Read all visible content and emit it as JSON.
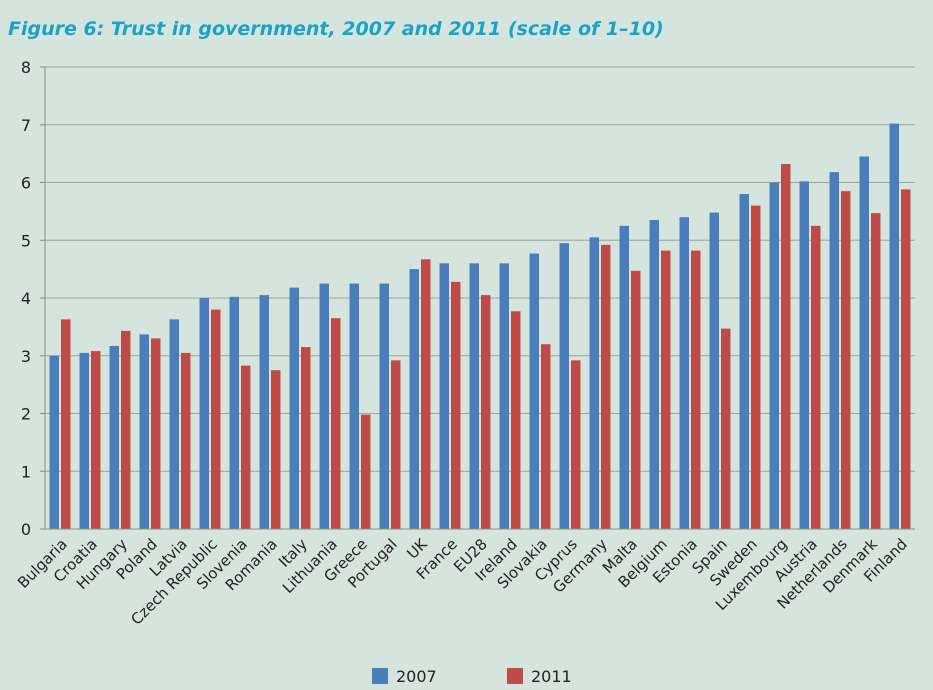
{
  "title": "Figure 6: Trust in government, 2007 and 2011 (scale of 1–10)",
  "colors": {
    "s2007": "#4a7ebb",
    "s2011": "#be4b48",
    "axis": "#8a8a8a",
    "grid": "#9aa39e"
  },
  "chart_data": {
    "type": "bar",
    "title": "Figure 6: Trust in government, 2007 and 2011 (scale of 1–10)",
    "xlabel": "",
    "ylabel": "",
    "ylim": [
      0,
      8
    ],
    "yticks": [
      "0",
      "1",
      "2",
      "3",
      "4",
      "5",
      "6",
      "7",
      "8"
    ],
    "grid": true,
    "legend": "bottom",
    "categories": [
      "Bulgaria",
      "Croatia",
      "Hungary",
      "Poland",
      "Latvia",
      "Czech Republic",
      "Slovenia",
      "Romania",
      "Italy",
      "Lithuania",
      "Greece",
      "Portugal",
      "UK",
      "France",
      "EU28",
      "Ireland",
      "Slovakia",
      "Cyprus",
      "Germany",
      "Malta",
      "Belgium",
      "Estonia",
      "Spain",
      "Sweden",
      "Luxembourg",
      "Austria",
      "Netherlands",
      "Denmark",
      "Finland"
    ],
    "series": [
      {
        "name": "2007",
        "values": [
          3.0,
          3.05,
          3.17,
          3.37,
          3.63,
          4.0,
          4.02,
          4.05,
          4.18,
          4.25,
          4.25,
          4.25,
          4.5,
          4.6,
          4.6,
          4.6,
          4.77,
          4.95,
          5.05,
          5.25,
          5.35,
          5.4,
          5.48,
          5.8,
          6.0,
          6.02,
          6.18,
          6.45,
          7.02
        ]
      },
      {
        "name": "2011",
        "values": [
          3.63,
          3.08,
          3.43,
          3.3,
          3.05,
          3.8,
          2.83,
          2.75,
          3.15,
          3.65,
          1.98,
          2.92,
          4.67,
          4.28,
          4.05,
          3.77,
          3.2,
          2.92,
          4.92,
          4.47,
          4.82,
          4.82,
          3.47,
          5.6,
          6.32,
          5.25,
          5.85,
          5.47,
          5.88
        ]
      }
    ]
  }
}
